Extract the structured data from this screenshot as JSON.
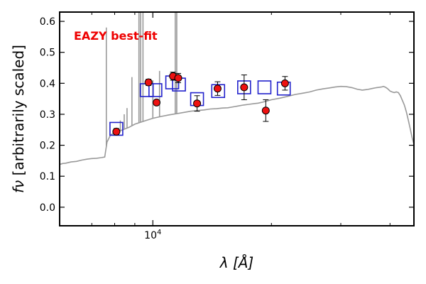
{
  "chart_data": {
    "type": "scatter",
    "x_scale": "log",
    "xlim": [
      5800,
      46000
    ],
    "ylim": [
      -0.06,
      0.63
    ],
    "xlabel": "λ [Å]",
    "ylabel": "f_ν [arbitrarily scaled]",
    "ylabel_symbol": "fν",
    "ylabel_text": " [arbitrarily scaled]",
    "annotation": "EAZY best-fit",
    "annotation_color": "#ee0000",
    "y_ticks": [
      0.0,
      0.1,
      0.2,
      0.3,
      0.4,
      0.5,
      0.6
    ],
    "y_tick_labels": [
      "0.0",
      "0.1",
      "0.2",
      "0.3",
      "0.4",
      "0.5",
      "0.6"
    ],
    "x_tick_label": {
      "value": 10000,
      "base": "10",
      "exponent": "4"
    },
    "x_minor_ticks": [
      7000,
      8000,
      9000,
      20000,
      30000,
      40000
    ],
    "grid": false,
    "colors": {
      "observed": "#ee1111",
      "model_box": "#2222cc",
      "template": "#999999"
    },
    "series": [
      {
        "kind": "template",
        "values": [
          [
            5800,
            0.138
          ],
          [
            5900,
            0.141
          ],
          [
            6000,
            0.142
          ],
          [
            6200,
            0.146
          ],
          [
            6400,
            0.148
          ],
          [
            6600,
            0.152
          ],
          [
            6800,
            0.155
          ],
          [
            7000,
            0.157
          ],
          [
            7200,
            0.158
          ],
          [
            7400,
            0.16
          ],
          [
            7550,
            0.162
          ],
          [
            7650,
            0.21
          ],
          [
            7800,
            0.232
          ],
          [
            8000,
            0.242
          ],
          [
            8200,
            0.245
          ],
          [
            8400,
            0.25
          ],
          [
            8700,
            0.258
          ],
          [
            9000,
            0.268
          ],
          [
            9300,
            0.274
          ],
          [
            9600,
            0.28
          ],
          [
            10000,
            0.287
          ],
          [
            10500,
            0.293
          ],
          [
            11000,
            0.298
          ],
          [
            11500,
            0.302
          ],
          [
            12000,
            0.306
          ],
          [
            12500,
            0.31
          ],
          [
            13000,
            0.312
          ],
          [
            13500,
            0.314
          ],
          [
            14000,
            0.317
          ],
          [
            14500,
            0.318
          ],
          [
            15000,
            0.32
          ],
          [
            15500,
            0.321
          ],
          [
            16000,
            0.324
          ],
          [
            16500,
            0.327
          ],
          [
            17000,
            0.33
          ],
          [
            17500,
            0.332
          ],
          [
            18000,
            0.334
          ],
          [
            18500,
            0.336
          ],
          [
            19000,
            0.339
          ],
          [
            19500,
            0.343
          ],
          [
            20000,
            0.347
          ],
          [
            21000,
            0.352
          ],
          [
            22000,
            0.358
          ],
          [
            23000,
            0.364
          ],
          [
            24000,
            0.368
          ],
          [
            25000,
            0.372
          ],
          [
            26000,
            0.378
          ],
          [
            27000,
            0.382
          ],
          [
            28000,
            0.385
          ],
          [
            29000,
            0.388
          ],
          [
            30000,
            0.39
          ],
          [
            31000,
            0.389
          ],
          [
            32000,
            0.386
          ],
          [
            33000,
            0.381
          ],
          [
            34000,
            0.378
          ],
          [
            35000,
            0.38
          ],
          [
            36000,
            0.383
          ],
          [
            37000,
            0.386
          ],
          [
            38000,
            0.388
          ],
          [
            38500,
            0.39
          ],
          [
            39000,
            0.387
          ],
          [
            39500,
            0.382
          ],
          [
            40000,
            0.375
          ],
          [
            40500,
            0.372
          ],
          [
            41000,
            0.37
          ],
          [
            41500,
            0.372
          ],
          [
            42000,
            0.37
          ],
          [
            42500,
            0.36
          ],
          [
            43000,
            0.345
          ],
          [
            43500,
            0.33
          ],
          [
            44000,
            0.308
          ],
          [
            44500,
            0.282
          ],
          [
            45000,
            0.254
          ],
          [
            45500,
            0.225
          ],
          [
            46000,
            0.203
          ]
        ],
        "emission_lines": [
          [
            7620,
            0.58
          ],
          [
            8160,
            0.24
          ],
          [
            8270,
            0.28
          ],
          [
            8460,
            0.3
          ],
          [
            8600,
            0.32
          ],
          [
            8850,
            0.42
          ],
          [
            9220,
            0.63
          ],
          [
            9310,
            0.63
          ],
          [
            9440,
            0.63
          ],
          [
            10000,
            0.41
          ],
          [
            10400,
            0.44
          ],
          [
            11400,
            0.63
          ],
          [
            11500,
            0.63
          ]
        ]
      },
      {
        "kind": "observed",
        "values": [
          {
            "x": 8080,
            "y": 0.244,
            "err": 0.01
          },
          {
            "x": 9750,
            "y": 0.403,
            "err": 0.01
          },
          {
            "x": 10220,
            "y": 0.338,
            "err": 0.008
          },
          {
            "x": 11250,
            "y": 0.423,
            "err": 0.013
          },
          {
            "x": 11600,
            "y": 0.417,
            "err": 0.015
          },
          {
            "x": 12950,
            "y": 0.335,
            "err": 0.025
          },
          {
            "x": 14600,
            "y": 0.383,
            "err": 0.022
          },
          {
            "x": 17050,
            "y": 0.387,
            "err": 0.04
          },
          {
            "x": 19350,
            "y": 0.312,
            "err": 0.035
          },
          {
            "x": 21650,
            "y": 0.4,
            "err": 0.022
          }
        ]
      },
      {
        "kind": "model",
        "values": [
          {
            "x": 8080,
            "y": 0.253
          },
          {
            "x": 9650,
            "y": 0.378
          },
          {
            "x": 10150,
            "y": 0.378
          },
          {
            "x": 11200,
            "y": 0.403
          },
          {
            "x": 11650,
            "y": 0.396
          },
          {
            "x": 12950,
            "y": 0.349
          },
          {
            "x": 14650,
            "y": 0.375
          },
          {
            "x": 17050,
            "y": 0.387
          },
          {
            "x": 19200,
            "y": 0.387
          },
          {
            "x": 21500,
            "y": 0.383
          }
        ]
      }
    ]
  }
}
